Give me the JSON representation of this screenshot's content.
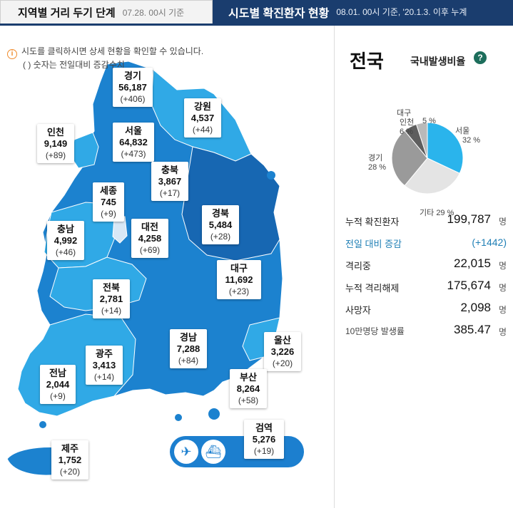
{
  "tabs": {
    "districts": {
      "title": "지역별 거리 두기 단계",
      "sub": "07.28. 00시 기준"
    },
    "confirmed": {
      "title": "시도별 확진환자 현황",
      "sub": "08.01. 00시 기준, '20.1.3. 이후 누계"
    }
  },
  "notice": {
    "line1": "시도를 클릭하시면 상세 현황을 확인할 수 있습니다.",
    "line2": "( ) 숫자는 전일대비 증감수치"
  },
  "regions": [
    {
      "name": "경기",
      "value": "56,187",
      "inc": "(+406)"
    },
    {
      "name": "강원",
      "value": "4,537",
      "inc": "(+44)"
    },
    {
      "name": "인천",
      "value": "9,149",
      "inc": "(+89)"
    },
    {
      "name": "서울",
      "value": "64,832",
      "inc": "(+473)"
    },
    {
      "name": "충북",
      "value": "3,867",
      "inc": "(+17)"
    },
    {
      "name": "세종",
      "value": "745",
      "inc": "(+9)"
    },
    {
      "name": "경북",
      "value": "5,484",
      "inc": "(+28)"
    },
    {
      "name": "충남",
      "value": "4,992",
      "inc": "(+46)"
    },
    {
      "name": "대전",
      "value": "4,258",
      "inc": "(+69)"
    },
    {
      "name": "대구",
      "value": "11,692",
      "inc": "(+23)"
    },
    {
      "name": "전북",
      "value": "2,781",
      "inc": "(+14)"
    },
    {
      "name": "울산",
      "value": "3,226",
      "inc": "(+20)"
    },
    {
      "name": "경남",
      "value": "7,288",
      "inc": "(+84)"
    },
    {
      "name": "광주",
      "value": "3,413",
      "inc": "(+14)"
    },
    {
      "name": "전남",
      "value": "2,044",
      "inc": "(+9)"
    },
    {
      "name": "부산",
      "value": "8,264",
      "inc": "(+58)"
    },
    {
      "name": "검역",
      "value": "5,276",
      "inc": "(+19)"
    },
    {
      "name": "제주",
      "value": "1,752",
      "inc": "(+20)"
    }
  ],
  "icons": {
    "airport": "airplane-icon",
    "port": "ship-icon"
  },
  "national": {
    "title": "전국",
    "ratio_title": "국내발생비율",
    "help": "?"
  },
  "chart_data": {
    "type": "pie",
    "title": "국내발생비율",
    "slices": [
      {
        "label": "서울",
        "pct": "32 %",
        "value": 32,
        "color": "#2ab4ec"
      },
      {
        "label": "기타",
        "pct": "29 %",
        "value": 29,
        "color": "#e4e4e4"
      },
      {
        "label": "경기",
        "pct": "28 %",
        "value": 28,
        "color": "#9a9a9a"
      },
      {
        "label": "인천",
        "pct": "6 %",
        "value": 6,
        "color": "#5e5e5e"
      },
      {
        "label": "대구",
        "pct": "5 %",
        "value": 5,
        "color": "#b9b9b9"
      }
    ]
  },
  "stats": [
    {
      "label": "누적 확진환자",
      "value": "199,787",
      "unit": "명"
    },
    {
      "label": "전일 대비 증감",
      "value": "(+1442)",
      "unit": ""
    },
    {
      "label": "격리중",
      "value": "22,015",
      "unit": "명"
    },
    {
      "label": "누적 격리해제",
      "value": "175,674",
      "unit": "명"
    },
    {
      "label": "사망자",
      "value": "2,098",
      "unit": "명"
    },
    {
      "label": "10만명당 발생률",
      "value": "385.47",
      "unit": "명"
    }
  ],
  "colors": {
    "navy": "#1a3d6e",
    "map_main": "#1c82cf",
    "map_light": "#30a9e6",
    "map_dark": "#1767b2",
    "help": "#1d6e5c"
  }
}
